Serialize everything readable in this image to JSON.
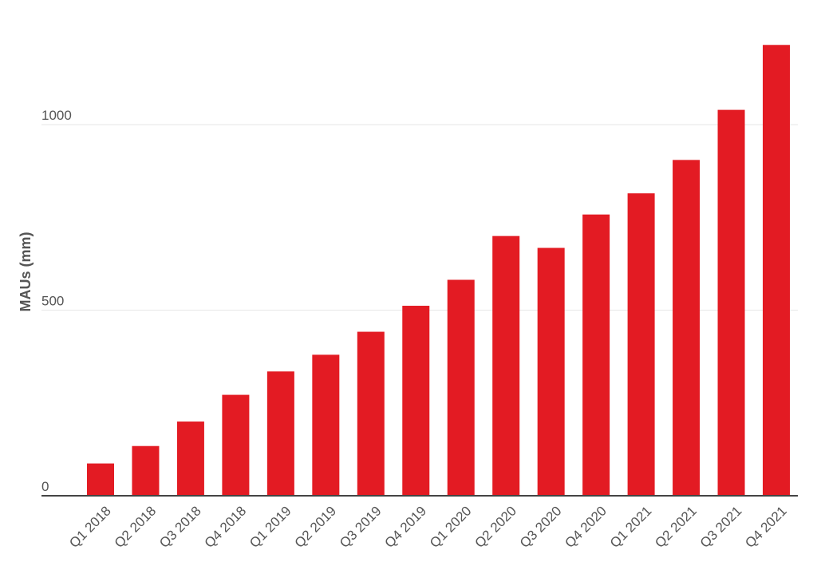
{
  "chart_data": {
    "type": "bar",
    "title": "",
    "xlabel": "",
    "ylabel": "MAUs (mm)",
    "categories": [
      "Q1 2018",
      "Q2 2018",
      "Q3 2018",
      "Q4 2018",
      "Q1 2019",
      "Q2 2019",
      "Q3 2019",
      "Q4 2019",
      "Q1 2020",
      "Q2 2020",
      "Q3 2020",
      "Q4 2020",
      "Q1 2021",
      "Q2 2021",
      "Q3 2021",
      "Q4 2021"
    ],
    "values": [
      87,
      134,
      200,
      272,
      335,
      380,
      442,
      512,
      582,
      700,
      668,
      758,
      815,
      905,
      1040,
      1215
    ],
    "ylim": [
      0,
      1250
    ],
    "yticks": [
      0,
      500,
      1000
    ],
    "ytick_labels": [
      "0",
      "500",
      "1000"
    ],
    "grid": true,
    "legend": "none",
    "bar_color": "#e31b23"
  }
}
